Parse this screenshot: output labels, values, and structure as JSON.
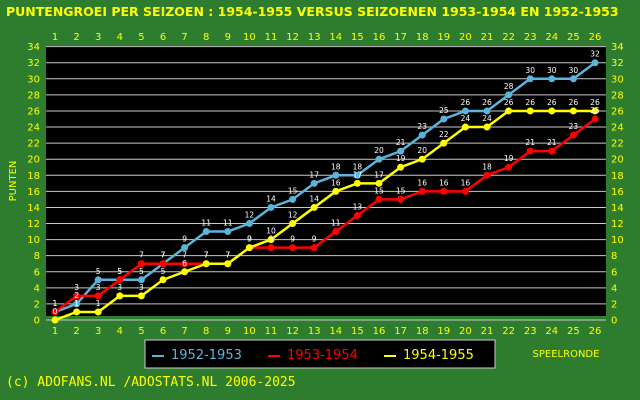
{
  "chart_data": {
    "type": "line",
    "title": "PUNTENGROEI PER SEIZOEN : 1954-1955 VERSUS SEIZOENEN 1953-1954 EN 1952-1953",
    "ylabel": "PUNTEN",
    "xlabel": "SPEELRONDE",
    "x": [
      1,
      2,
      3,
      4,
      5,
      6,
      7,
      8,
      9,
      10,
      11,
      12,
      13,
      14,
      15,
      16,
      17,
      18,
      19,
      20,
      21,
      22,
      23,
      24,
      25,
      26
    ],
    "ylim": [
      0,
      34
    ],
    "yticks": [
      0,
      2,
      4,
      6,
      8,
      10,
      12,
      14,
      16,
      18,
      20,
      22,
      24,
      26,
      28,
      30,
      32,
      34
    ],
    "grid": true,
    "legend_position": "bottom",
    "colors": {
      "background": "#2e7d2e",
      "plot_background": "#000000",
      "text": "#ffff00",
      "grid": "#c8c8c8"
    },
    "series": [
      {
        "name": "1952-1953",
        "color": "#5ab4dc",
        "values": [
          1,
          2,
          5,
          5,
          5,
          7,
          9,
          11,
          11,
          12,
          14,
          15,
          17,
          18,
          18,
          20,
          21,
          23,
          25,
          26,
          26,
          28,
          30,
          30,
          30,
          32
        ]
      },
      {
        "name": "1953-1954",
        "color": "#ff0000",
        "values": [
          1,
          3,
          3,
          5,
          7,
          7,
          7,
          7,
          7,
          9,
          9,
          9,
          9,
          11,
          13,
          15,
          15,
          16,
          16,
          16,
          18,
          19,
          21,
          21,
          23,
          25
        ]
      },
      {
        "name": "1954-1955",
        "color": "#ffff00",
        "values": [
          0,
          1,
          1,
          3,
          3,
          5,
          6,
          7,
          7,
          9,
          10,
          12,
          14,
          16,
          17,
          17,
          19,
          20,
          22,
          24,
          24,
          26,
          26,
          26,
          26,
          26
        ]
      }
    ]
  },
  "footer": {
    "credit": "(c) ADOFANS.NL /ADOSTATS.NL 2006-2025"
  }
}
